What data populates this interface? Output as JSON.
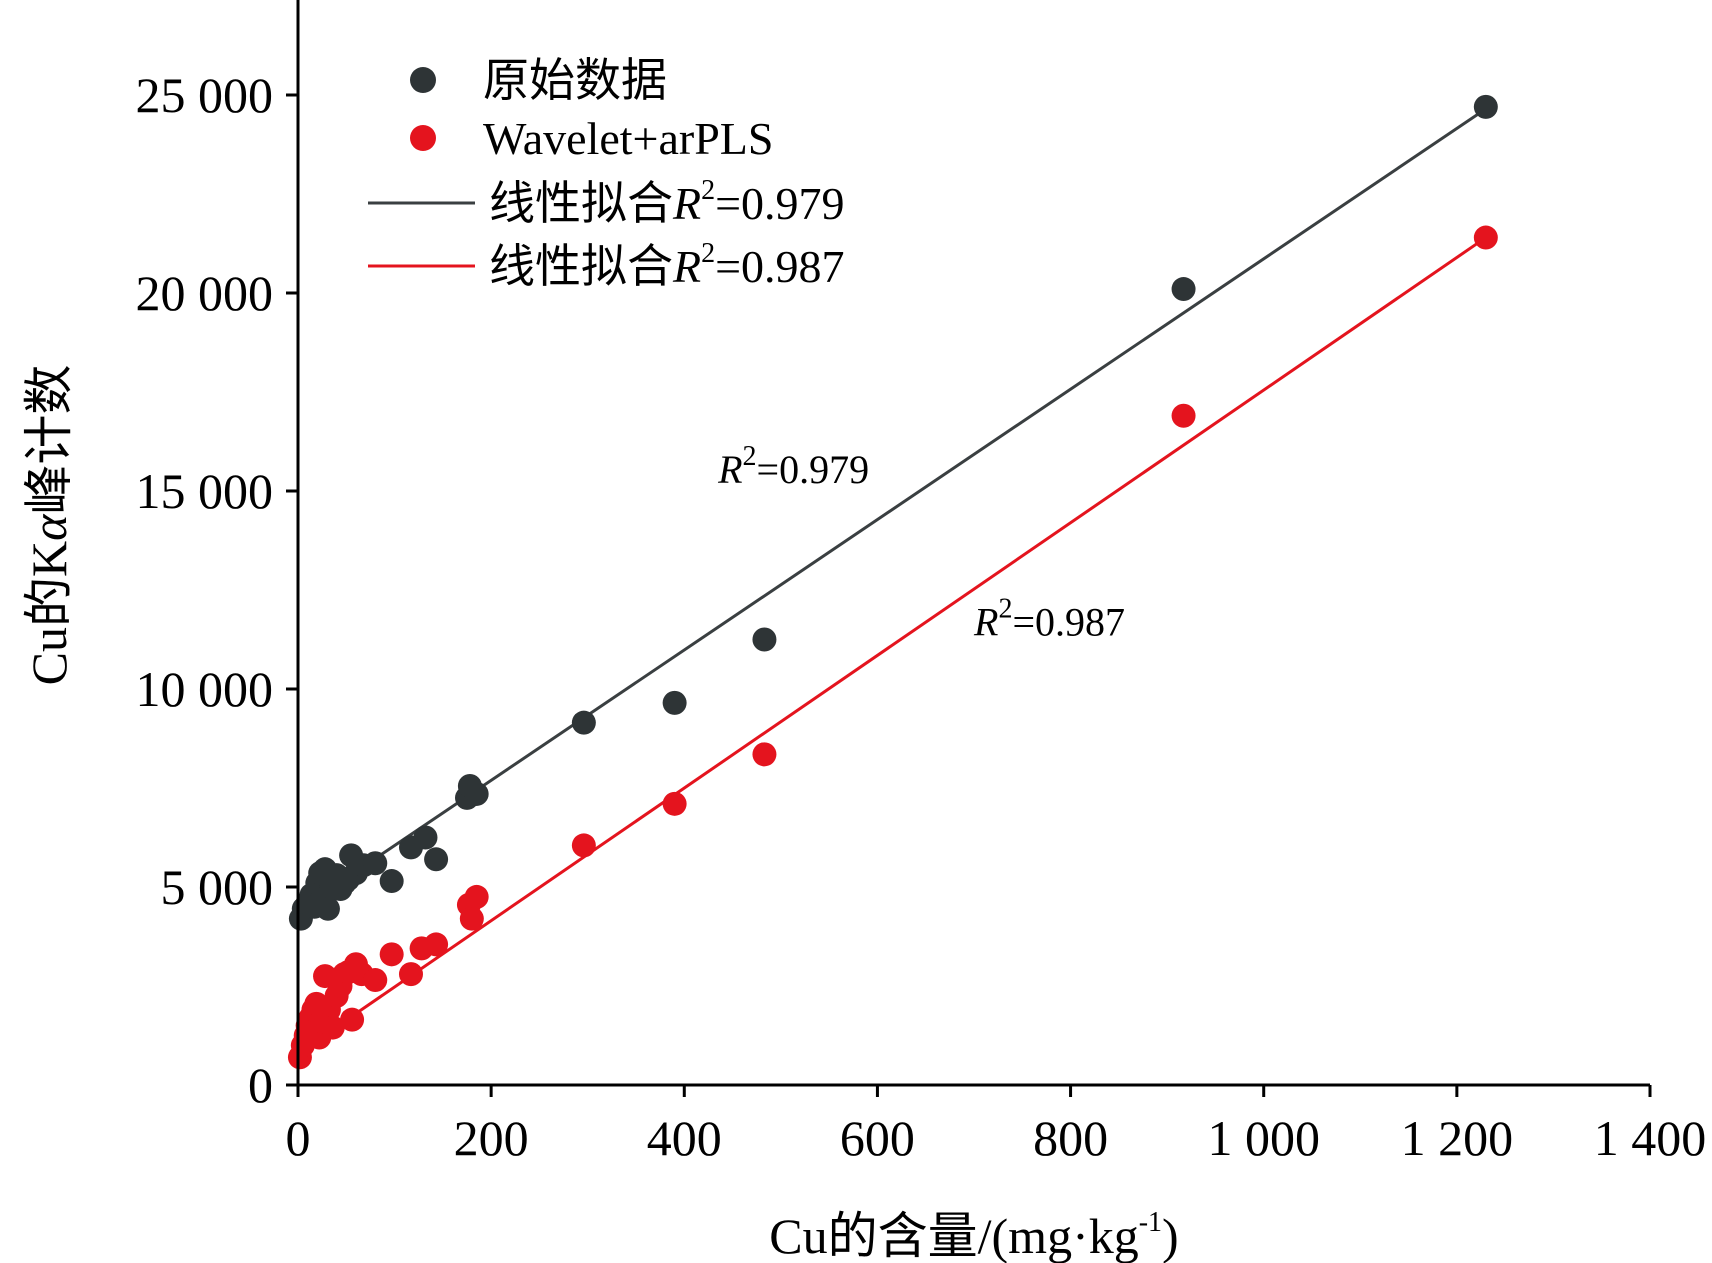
{
  "chart_data": {
    "type": "scatter",
    "xlabel": "Cu的含量/(mg·kg",
    "xlabel_sup": "-1",
    "xlabel_suffix": ")",
    "ylabel_prefix": "Cu的K",
    "ylabel_alpha": "α",
    "ylabel_suffix": "峰计数",
    "xlim": [
      0,
      1400
    ],
    "ylim": [
      0,
      27000
    ],
    "x_ticks": [
      0,
      200,
      400,
      600,
      800,
      1000,
      1200,
      1400
    ],
    "x_tick_labels": [
      "0",
      "200",
      "400",
      "600",
      "800",
      "1 000",
      "1 200",
      "1 400"
    ],
    "y_ticks": [
      0,
      5000,
      10000,
      15000,
      20000,
      25000
    ],
    "y_tick_labels": [
      "0",
      "5 000",
      "10 000",
      "15 000",
      "20 000",
      "25 000"
    ],
    "grid": false,
    "legend_position": "top-left",
    "legend": [
      {
        "kind": "marker",
        "label": "原始数据",
        "color": "#2e3436"
      },
      {
        "kind": "marker",
        "label": "Wavelet+arPLS",
        "color": "#e4141e"
      },
      {
        "kind": "line",
        "label_prefix": "线性拟合",
        "label_r": "R",
        "label_sup": "2",
        "label_value": "=0.979",
        "color": "#3a3f41"
      },
      {
        "kind": "line",
        "label_prefix": "线性拟合",
        "label_r": "R",
        "label_sup": "2",
        "label_value": "=0.987",
        "color": "#e4141e"
      }
    ],
    "annotations": [
      {
        "r": "R",
        "sup": "2",
        "value": "=0.979",
        "x": 435,
        "y": 15200
      },
      {
        "r": "R",
        "sup": "2",
        "value": "=0.987",
        "x": 700,
        "y": 11350
      }
    ],
    "series": [
      {
        "name": "原始数据",
        "color": "#2e3436",
        "points": [
          [
            3,
            4200
          ],
          [
            6,
            4450
          ],
          [
            10,
            4600
          ],
          [
            14,
            4800
          ],
          [
            17,
            4500
          ],
          [
            20,
            5100
          ],
          [
            23,
            5350
          ],
          [
            25,
            4700
          ],
          [
            28,
            5450
          ],
          [
            31,
            4450
          ],
          [
            35,
            5000
          ],
          [
            40,
            5300
          ],
          [
            44,
            4950
          ],
          [
            48,
            5100
          ],
          [
            52,
            5200
          ],
          [
            55,
            5800
          ],
          [
            60,
            5350
          ],
          [
            68,
            5550
          ],
          [
            80,
            5600
          ],
          [
            97,
            5150
          ],
          [
            117,
            6000
          ],
          [
            132,
            6250
          ],
          [
            143,
            5700
          ],
          [
            175,
            7250
          ],
          [
            178,
            7550
          ],
          [
            185,
            7350
          ],
          [
            296,
            9150
          ],
          [
            390,
            9650
          ],
          [
            483,
            11250
          ],
          [
            917,
            20100
          ],
          [
            1230,
            24700
          ]
        ]
      },
      {
        "name": "Wavelet+arPLS",
        "color": "#e4141e",
        "points": [
          [
            2,
            700
          ],
          [
            5,
            1000
          ],
          [
            8,
            1250
          ],
          [
            10,
            1500
          ],
          [
            13,
            1700
          ],
          [
            16,
            1900
          ],
          [
            19,
            2050
          ],
          [
            22,
            1200
          ],
          [
            25,
            1600
          ],
          [
            28,
            2750
          ],
          [
            32,
            1900
          ],
          [
            36,
            1450
          ],
          [
            40,
            2250
          ],
          [
            44,
            2500
          ],
          [
            48,
            2800
          ],
          [
            52,
            2850
          ],
          [
            56,
            1650
          ],
          [
            60,
            3050
          ],
          [
            66,
            2800
          ],
          [
            80,
            2650
          ],
          [
            97,
            3300
          ],
          [
            117,
            2800
          ],
          [
            128,
            3450
          ],
          [
            143,
            3550
          ],
          [
            177,
            4550
          ],
          [
            180,
            4200
          ],
          [
            185,
            4750
          ],
          [
            296,
            6050
          ],
          [
            390,
            7100
          ],
          [
            483,
            8350
          ],
          [
            917,
            16900
          ],
          [
            1230,
            21400
          ]
        ]
      }
    ],
    "fits": [
      {
        "name": "线性拟合R2=0.979",
        "color": "#3a3f41",
        "x": [
          0,
          1230
        ],
        "y": [
          4400,
          24650
        ]
      },
      {
        "name": "线性拟合R2=0.987",
        "color": "#e4141e",
        "x": [
          0,
          1230
        ],
        "y": [
          800,
          21400
        ]
      }
    ]
  }
}
